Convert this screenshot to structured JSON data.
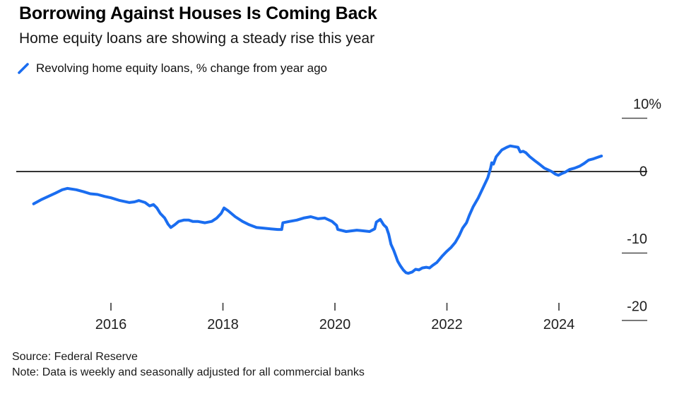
{
  "chart_data": {
    "type": "line",
    "title": "Borrowing Against Houses Is Coming Back",
    "subtitle": "Home equity loans are showing a steady rise this year",
    "legend_position": "top-left",
    "grid": false,
    "zero_line": true,
    "xlim": [
      2014.5,
      2024.9
    ],
    "ylim": [
      -21,
      11
    ],
    "x_ticks": [
      "2016",
      "2018",
      "2020",
      "2022",
      "2024"
    ],
    "x_tick_values": [
      2016,
      2018,
      2020,
      2022,
      2024
    ],
    "y_ticks": [
      "10%",
      "0",
      "-10",
      "-20"
    ],
    "y_tick_values": [
      10,
      0,
      -10,
      -20
    ],
    "series": [
      {
        "name": "Revolving home equity loans, % change from year ago",
        "color": "#1a6df0",
        "points": [
          [
            2014.62,
            -4.8
          ],
          [
            2014.75,
            -4.2
          ],
          [
            2014.88,
            -3.7
          ],
          [
            2015.01,
            -3.2
          ],
          [
            2015.13,
            -2.7
          ],
          [
            2015.22,
            -2.5
          ],
          [
            2015.38,
            -2.7
          ],
          [
            2015.51,
            -3.0
          ],
          [
            2015.63,
            -3.3
          ],
          [
            2015.76,
            -3.4
          ],
          [
            2015.89,
            -3.7
          ],
          [
            2016.0,
            -3.9
          ],
          [
            2016.16,
            -4.3
          ],
          [
            2016.33,
            -4.6
          ],
          [
            2016.42,
            -4.5
          ],
          [
            2016.5,
            -4.3
          ],
          [
            2016.61,
            -4.6
          ],
          [
            2016.69,
            -5.1
          ],
          [
            2016.76,
            -4.9
          ],
          [
            2016.82,
            -5.4
          ],
          [
            2016.88,
            -6.2
          ],
          [
            2016.96,
            -6.9
          ],
          [
            2017.02,
            -7.8
          ],
          [
            2017.07,
            -8.3
          ],
          [
            2017.14,
            -7.9
          ],
          [
            2017.21,
            -7.4
          ],
          [
            2017.3,
            -7.2
          ],
          [
            2017.39,
            -7.2
          ],
          [
            2017.46,
            -7.4
          ],
          [
            2017.55,
            -7.4
          ],
          [
            2017.68,
            -7.6
          ],
          [
            2017.8,
            -7.4
          ],
          [
            2017.89,
            -6.9
          ],
          [
            2017.97,
            -6.2
          ],
          [
            2018.02,
            -5.4
          ],
          [
            2018.09,
            -5.8
          ],
          [
            2018.22,
            -6.7
          ],
          [
            2018.35,
            -7.4
          ],
          [
            2018.47,
            -7.9
          ],
          [
            2018.6,
            -8.3
          ],
          [
            2018.73,
            -8.4
          ],
          [
            2018.85,
            -8.5
          ],
          [
            2018.98,
            -8.6
          ],
          [
            2019.05,
            -8.6
          ],
          [
            2019.07,
            -7.6
          ],
          [
            2019.19,
            -7.4
          ],
          [
            2019.32,
            -7.2
          ],
          [
            2019.44,
            -6.9
          ],
          [
            2019.57,
            -6.7
          ],
          [
            2019.7,
            -7.0
          ],
          [
            2019.82,
            -6.9
          ],
          [
            2019.95,
            -7.4
          ],
          [
            2020.03,
            -8.0
          ],
          [
            2020.05,
            -8.6
          ],
          [
            2020.2,
            -8.9
          ],
          [
            2020.39,
            -8.7
          ],
          [
            2020.62,
            -8.9
          ],
          [
            2020.71,
            -8.5
          ],
          [
            2020.74,
            -7.5
          ],
          [
            2020.81,
            -7.1
          ],
          [
            2020.87,
            -7.9
          ],
          [
            2020.92,
            -8.3
          ],
          [
            2020.96,
            -9.3
          ],
          [
            2021.0,
            -10.8
          ],
          [
            2021.05,
            -11.7
          ],
          [
            2021.09,
            -12.6
          ],
          [
            2021.12,
            -13.3
          ],
          [
            2021.17,
            -14.0
          ],
          [
            2021.22,
            -14.6
          ],
          [
            2021.27,
            -15.0
          ],
          [
            2021.31,
            -15.1
          ],
          [
            2021.38,
            -14.9
          ],
          [
            2021.44,
            -14.5
          ],
          [
            2021.5,
            -14.6
          ],
          [
            2021.56,
            -14.3
          ],
          [
            2021.63,
            -14.2
          ],
          [
            2021.69,
            -14.3
          ],
          [
            2021.75,
            -13.9
          ],
          [
            2021.82,
            -13.5
          ],
          [
            2021.91,
            -12.6
          ],
          [
            2021.99,
            -11.9
          ],
          [
            2022.07,
            -11.3
          ],
          [
            2022.15,
            -10.5
          ],
          [
            2022.22,
            -9.5
          ],
          [
            2022.28,
            -8.4
          ],
          [
            2022.35,
            -7.6
          ],
          [
            2022.4,
            -6.5
          ],
          [
            2022.47,
            -5.2
          ],
          [
            2022.56,
            -3.9
          ],
          [
            2022.64,
            -2.5
          ],
          [
            2022.73,
            -0.9
          ],
          [
            2022.78,
            0.5
          ],
          [
            2022.8,
            1.3
          ],
          [
            2022.83,
            1.1
          ],
          [
            2022.88,
            2.2
          ],
          [
            2022.98,
            3.2
          ],
          [
            2023.07,
            3.6
          ],
          [
            2023.13,
            3.8
          ],
          [
            2023.2,
            3.7
          ],
          [
            2023.27,
            3.6
          ],
          [
            2023.31,
            2.9
          ],
          [
            2023.36,
            3.0
          ],
          [
            2023.41,
            2.8
          ],
          [
            2023.48,
            2.2
          ],
          [
            2023.57,
            1.6
          ],
          [
            2023.65,
            1.1
          ],
          [
            2023.74,
            0.5
          ],
          [
            2023.82,
            0.2
          ],
          [
            2023.87,
            0.0
          ],
          [
            2023.94,
            -0.4
          ],
          [
            2023.99,
            -0.55
          ],
          [
            2024.05,
            -0.3
          ],
          [
            2024.11,
            -0.1
          ],
          [
            2024.19,
            0.3
          ],
          [
            2024.28,
            0.5
          ],
          [
            2024.37,
            0.8
          ],
          [
            2024.45,
            1.2
          ],
          [
            2024.53,
            1.7
          ],
          [
            2024.62,
            1.9
          ],
          [
            2024.69,
            2.1
          ],
          [
            2024.76,
            2.3
          ]
        ]
      }
    ]
  },
  "colors": {
    "line": "#1a6df0",
    "zero_line": "#333333",
    "axis_tick": "#4d4d4d",
    "axis_text": "#1f1f1f"
  },
  "footer": {
    "source": "Source: Federal Reserve",
    "note": "Note: Data is weekly and seasonally adjusted for all commercial banks"
  }
}
